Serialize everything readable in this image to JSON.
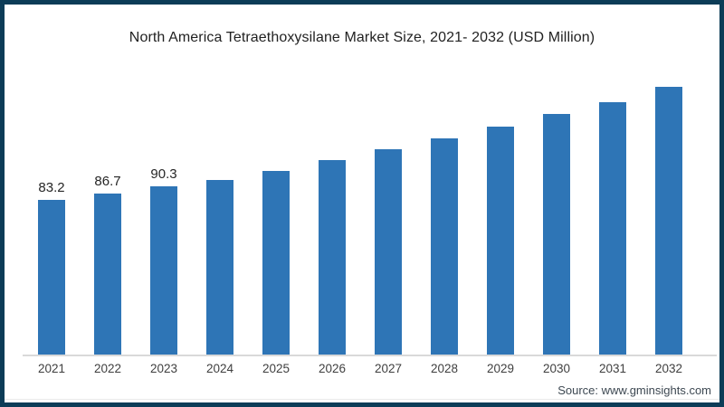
{
  "frame": {
    "border_color": "#0c3c57",
    "background": "#ffffff"
  },
  "chart_data": {
    "type": "bar",
    "title": "North America Tetraethoxysilane Market Size, 2021- 2032 (USD Million)",
    "categories": [
      "2021",
      "2022",
      "2023",
      "2024",
      "2025",
      "2026",
      "2027",
      "2028",
      "2029",
      "2030",
      "2031",
      "2032"
    ],
    "values": [
      83.2,
      86.7,
      90.3,
      93.8,
      98.6,
      104.4,
      110.2,
      116.0,
      122.2,
      129.0,
      135.3,
      143.5
    ],
    "data_labels": [
      "83.2",
      "86.7",
      "90.3",
      "",
      "",
      "",
      "",
      "",
      "",
      "",
      "",
      ""
    ],
    "bar_color": "#2e75b6",
    "xlabel": "",
    "ylabel": "",
    "ylim": [
      0,
      150
    ],
    "grid": false,
    "legend": "none",
    "axis_line_color": "#d9d9d9"
  },
  "footer": {
    "source": "Source: www.gminsights.com"
  }
}
